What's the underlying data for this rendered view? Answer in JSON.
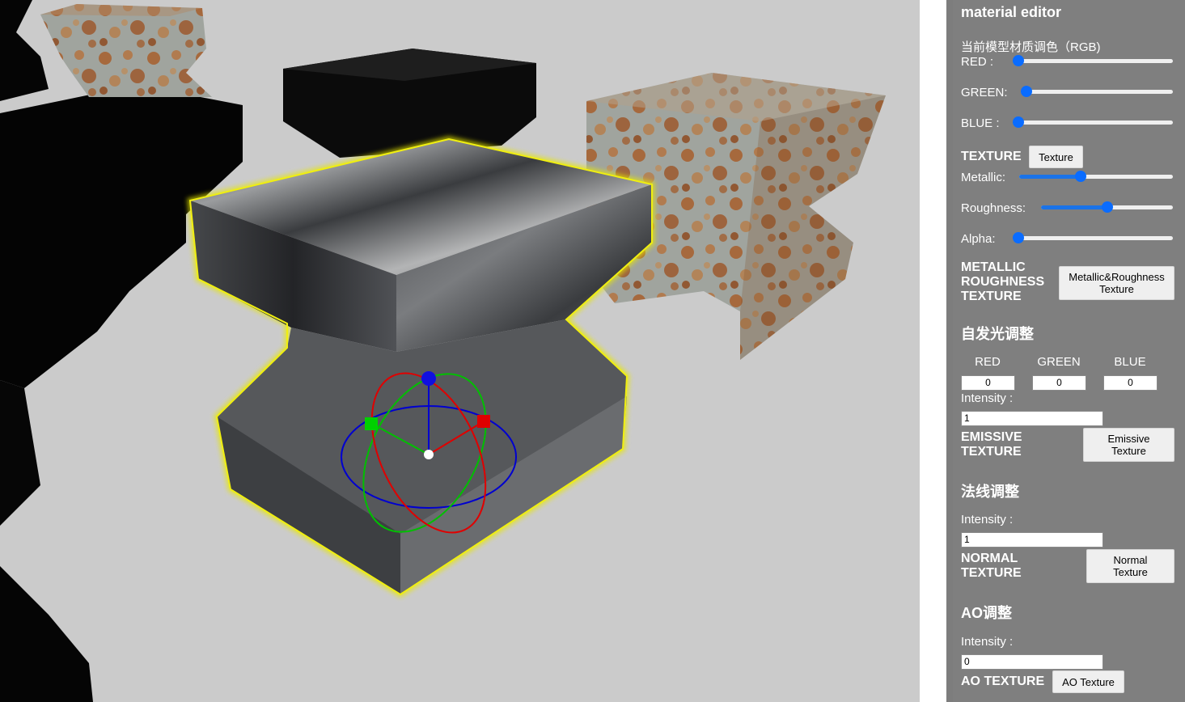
{
  "panel": {
    "title": "material editor",
    "rgb_heading": "当前模型材质调色（RGB)",
    "red_label": "RED :",
    "green_label": "GREEN:",
    "blue_label": "BLUE :",
    "red_value": 0,
    "green_value": 0,
    "blue_value": 0,
    "texture_label": "TEXTURE",
    "texture_button": "Texture",
    "metallic_label": "Metallic:",
    "metallic_value": 0.4,
    "roughness_label": "Roughness:",
    "roughness_value": 0.5,
    "alpha_label": "Alpha:",
    "alpha_value": 0,
    "mr_texture_label": "METALLIC ROUGHNESS TEXTURE",
    "mr_texture_button": "Metallic&Roughness Texture",
    "emissive_heading": "自发光调整",
    "emissive_cols": [
      "RED",
      "GREEN",
      "BLUE"
    ],
    "emissive_values": [
      "0",
      "0",
      "0"
    ],
    "emissive_intensity_label": "Intensity :",
    "emissive_intensity_value": "1",
    "emissive_texture_label": "EMISSIVE TEXTURE",
    "emissive_texture_button": "Emissive Texture",
    "normal_heading": "法线调整",
    "normal_intensity_label": "Intensity :",
    "normal_intensity_value": "1",
    "normal_texture_label": "NORMAL TEXTURE",
    "normal_texture_button": "Normal Texture",
    "ao_heading": "AO调整",
    "ao_intensity_label": "Intensity :",
    "ao_intensity_value": "0",
    "ao_texture_label": "AO TEXTURE",
    "ao_texture_button": "AO Texture"
  },
  "colors": {
    "viewport_bg": "#cbcbcb",
    "panel_bg": "#7f7f7f",
    "slider_accent": "#1a73e8",
    "selection_outline": "#e8e800",
    "gizmo_x": "#e00000",
    "gizmo_y": "#00c000",
    "gizmo_z": "#0000d0"
  }
}
